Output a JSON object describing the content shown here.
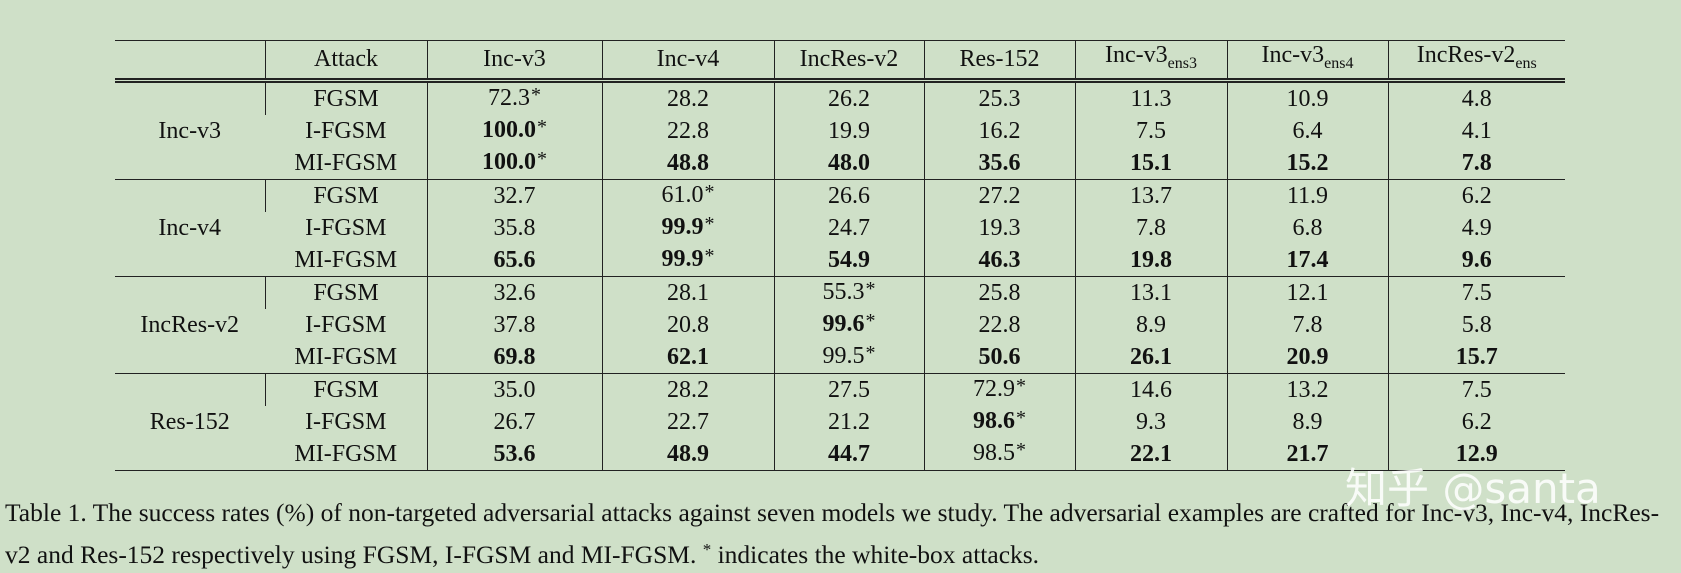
{
  "table": {
    "header": [
      {
        "text": "Attack"
      },
      {
        "text": "Inc-v3"
      },
      {
        "text": "Inc-v4"
      },
      {
        "text": "IncRes-v2"
      },
      {
        "text": "Res-152"
      },
      {
        "text": "Inc-v3",
        "sub": "ens3"
      },
      {
        "text": "Inc-v3",
        "sub": "ens4"
      },
      {
        "text": "IncRes-v2",
        "sub": "ens"
      }
    ],
    "groups": [
      {
        "model": "Inc-v3",
        "rows": [
          {
            "attack": "FGSM",
            "cells": [
              {
                "text": "72.3",
                "star": "*"
              },
              {
                "text": "28.2"
              },
              {
                "text": "26.2"
              },
              {
                "text": "25.3"
              },
              {
                "text": "11.3"
              },
              {
                "text": "10.9"
              },
              {
                "text": "4.8"
              }
            ]
          },
          {
            "attack": "I-FGSM",
            "cells": [
              {
                "text": "100.0",
                "bold": true,
                "star": "*"
              },
              {
                "text": "22.8"
              },
              {
                "text": "19.9"
              },
              {
                "text": "16.2"
              },
              {
                "text": "7.5"
              },
              {
                "text": "6.4"
              },
              {
                "text": "4.1"
              }
            ]
          },
          {
            "attack": "MI-FGSM",
            "cells": [
              {
                "text": "100.0",
                "bold": true,
                "star": "*"
              },
              {
                "text": "48.8",
                "bold": true
              },
              {
                "text": "48.0",
                "bold": true
              },
              {
                "text": "35.6",
                "bold": true
              },
              {
                "text": "15.1",
                "bold": true
              },
              {
                "text": "15.2",
                "bold": true
              },
              {
                "text": "7.8",
                "bold": true
              }
            ]
          }
        ]
      },
      {
        "model": "Inc-v4",
        "rows": [
          {
            "attack": "FGSM",
            "cells": [
              {
                "text": "32.7"
              },
              {
                "text": "61.0",
                "star": "*"
              },
              {
                "text": "26.6"
              },
              {
                "text": "27.2"
              },
              {
                "text": "13.7"
              },
              {
                "text": "11.9"
              },
              {
                "text": "6.2"
              }
            ]
          },
          {
            "attack": "I-FGSM",
            "cells": [
              {
                "text": "35.8"
              },
              {
                "text": "99.9",
                "bold": true,
                "star": "*"
              },
              {
                "text": "24.7"
              },
              {
                "text": "19.3"
              },
              {
                "text": "7.8"
              },
              {
                "text": "6.8"
              },
              {
                "text": "4.9"
              }
            ]
          },
          {
            "attack": "MI-FGSM",
            "cells": [
              {
                "text": "65.6",
                "bold": true
              },
              {
                "text": "99.9",
                "bold": true,
                "star": "*"
              },
              {
                "text": "54.9",
                "bold": true
              },
              {
                "text": "46.3",
                "bold": true
              },
              {
                "text": "19.8",
                "bold": true
              },
              {
                "text": "17.4",
                "bold": true
              },
              {
                "text": "9.6",
                "bold": true
              }
            ]
          }
        ]
      },
      {
        "model": "IncRes-v2",
        "rows": [
          {
            "attack": "FGSM",
            "cells": [
              {
                "text": "32.6"
              },
              {
                "text": "28.1"
              },
              {
                "text": "55.3",
                "star": "*"
              },
              {
                "text": "25.8"
              },
              {
                "text": "13.1"
              },
              {
                "text": "12.1"
              },
              {
                "text": "7.5"
              }
            ]
          },
          {
            "attack": "I-FGSM",
            "cells": [
              {
                "text": "37.8"
              },
              {
                "text": "20.8"
              },
              {
                "text": "99.6",
                "bold": true,
                "star": "*"
              },
              {
                "text": "22.8"
              },
              {
                "text": "8.9"
              },
              {
                "text": "7.8"
              },
              {
                "text": "5.8"
              }
            ]
          },
          {
            "attack": "MI-FGSM",
            "cells": [
              {
                "text": "69.8",
                "bold": true
              },
              {
                "text": "62.1",
                "bold": true
              },
              {
                "text": "99.5",
                "star": "*"
              },
              {
                "text": "50.6",
                "bold": true
              },
              {
                "text": "26.1",
                "bold": true
              },
              {
                "text": "20.9",
                "bold": true
              },
              {
                "text": "15.7",
                "bold": true
              }
            ]
          }
        ]
      },
      {
        "model": "Res-152",
        "rows": [
          {
            "attack": "FGSM",
            "cells": [
              {
                "text": "35.0"
              },
              {
                "text": "28.2"
              },
              {
                "text": "27.5"
              },
              {
                "text": "72.9",
                "star": "*"
              },
              {
                "text": "14.6"
              },
              {
                "text": "13.2"
              },
              {
                "text": "7.5"
              }
            ]
          },
          {
            "attack": "I-FGSM",
            "cells": [
              {
                "text": "26.7"
              },
              {
                "text": "22.7"
              },
              {
                "text": "21.2"
              },
              {
                "text": "98.6",
                "bold": true,
                "star": "*"
              },
              {
                "text": "9.3"
              },
              {
                "text": "8.9"
              },
              {
                "text": "6.2"
              }
            ]
          },
          {
            "attack": "MI-FGSM",
            "cells": [
              {
                "text": "53.6",
                "bold": true
              },
              {
                "text": "48.9",
                "bold": true
              },
              {
                "text": "44.7",
                "bold": true
              },
              {
                "text": "98.5",
                "star": "*"
              },
              {
                "text": "22.1",
                "bold": true
              },
              {
                "text": "21.7",
                "bold": true
              },
              {
                "text": "12.9",
                "bold": true
              }
            ]
          }
        ]
      }
    ]
  },
  "caption": {
    "before": "Table 1. The success rates (%) of non-targeted adversarial attacks against seven models we study. The adversarial examples are crafted for Inc-v3, Inc-v4, IncRes-v2 and Res-152 respectively using FGSM, I-FGSM and MI-FGSM.",
    "star": "*",
    "after": "indicates the white-box attacks."
  },
  "watermark": "知乎 @santa"
}
